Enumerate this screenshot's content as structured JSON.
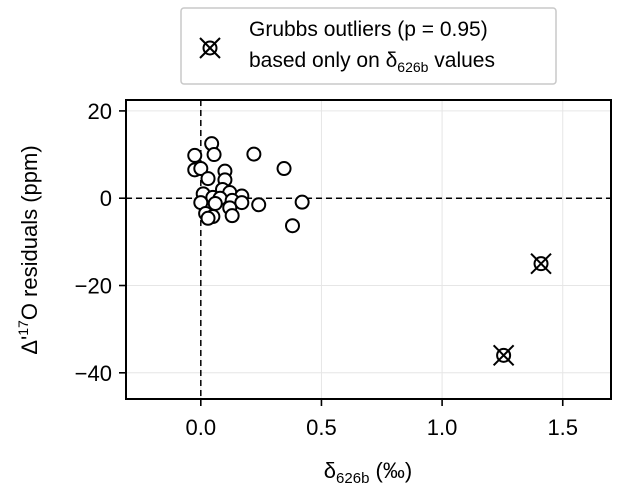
{
  "chart_data": {
    "type": "scatter",
    "xlabel": {
      "base": "δ",
      "sub": "626b",
      "rest": " (‰)"
    },
    "ylabel": {
      "pre": "Δ'",
      "sup": "17",
      "rest": "O residuals (ppm)"
    },
    "xlim": [
      -0.31,
      1.7
    ],
    "ylim": [
      -46,
      22.5
    ],
    "xticks": [
      0.0,
      0.5,
      1.0,
      1.5
    ],
    "xtick_labels": [
      "0.0",
      "0.5",
      "1.0",
      "1.5"
    ],
    "yticks": [
      20,
      0,
      -20,
      -40
    ],
    "ytick_labels": [
      "20",
      "0",
      "−20",
      "−40"
    ],
    "grid": true,
    "reference_lines": {
      "x": 0,
      "y": 0,
      "style": "dashed"
    },
    "legend": {
      "placement": "top-center, outside plot",
      "entries": [
        {
          "marker": "circle-x",
          "line1": "Grubbs outliers (p = 0.95)",
          "line2_pre": "based only on δ",
          "line2_sub": "626b",
          "line2_post": " values"
        }
      ]
    },
    "series": [
      {
        "marker": "open-circle",
        "points": [
          {
            "x": 0.045,
            "y": 12.5
          },
          {
            "x": 0.055,
            "y": 10.0
          },
          {
            "x": -0.025,
            "y": 9.8
          },
          {
            "x": 0.22,
            "y": 10.1
          },
          {
            "x": -0.025,
            "y": 6.5
          },
          {
            "x": 0.0,
            "y": 6.8
          },
          {
            "x": 0.1,
            "y": 6.2
          },
          {
            "x": 0.345,
            "y": 6.8
          },
          {
            "x": 0.03,
            "y": 4.5
          },
          {
            "x": 0.1,
            "y": 4.2
          },
          {
            "x": 0.09,
            "y": 2.0
          },
          {
            "x": 0.12,
            "y": 1.3
          },
          {
            "x": 0.01,
            "y": 1.0
          },
          {
            "x": 0.17,
            "y": 0.5
          },
          {
            "x": 0.05,
            "y": 0.2
          },
          {
            "x": 0.08,
            "y": 0.0
          },
          {
            "x": 0.13,
            "y": -0.5
          },
          {
            "x": 0.17,
            "y": -1.0
          },
          {
            "x": 0.42,
            "y": -0.9
          },
          {
            "x": 0.0,
            "y": -1.0
          },
          {
            "x": 0.06,
            "y": -1.2
          },
          {
            "x": 0.24,
            "y": -1.5
          },
          {
            "x": 0.12,
            "y": -2.2
          },
          {
            "x": 0.02,
            "y": -3.5
          },
          {
            "x": 0.13,
            "y": -4.0
          },
          {
            "x": 0.05,
            "y": -4.2
          },
          {
            "x": 0.03,
            "y": -4.6
          },
          {
            "x": 0.38,
            "y": -6.3
          }
        ]
      },
      {
        "name": "Grubbs outliers (p = 0.95)",
        "marker": "circle-x",
        "points": [
          {
            "x": 1.41,
            "y": -15.0
          },
          {
            "x": 1.255,
            "y": -36.0
          }
        ]
      }
    ]
  }
}
